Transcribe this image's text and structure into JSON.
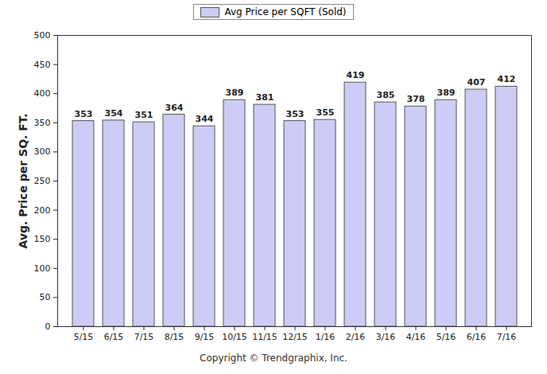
{
  "chart_data": {
    "type": "bar",
    "y_label": "Avg. Price per SQ. FT.",
    "caption": "Copyright © Trendgraphix, Inc.",
    "categories": [
      "5/15",
      "6/15",
      "7/15",
      "8/15",
      "9/15",
      "10/15",
      "11/15",
      "12/15",
      "1/16",
      "2/16",
      "3/16",
      "4/16",
      "5/16",
      "6/16",
      "7/16"
    ],
    "series": [
      {
        "name": "Avg Price per SQFT (Sold)",
        "color": "#ccccf5",
        "values": [
          353,
          354,
          351,
          364,
          344,
          389,
          381,
          353,
          355,
          419,
          385,
          378,
          389,
          407,
          412
        ]
      }
    ],
    "ylim": [
      0,
      500
    ],
    "yticks": [
      0,
      50,
      100,
      150,
      200,
      250,
      300,
      350,
      400,
      450,
      500
    ],
    "grid": false,
    "legend": "top",
    "data_labels": true
  }
}
